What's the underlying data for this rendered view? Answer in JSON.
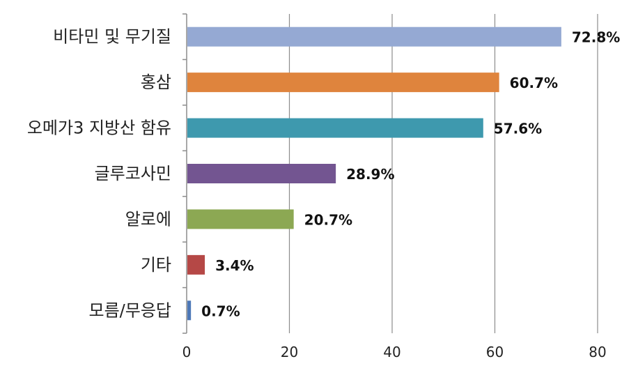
{
  "chart_data": {
    "type": "bar",
    "orientation": "horizontal",
    "categories": [
      "비타민 및 무기질",
      "홍삼",
      "오메가3 지방산 함유",
      "글루코사민",
      "알로에",
      "기타",
      "모름/무응답"
    ],
    "values": [
      72.8,
      60.7,
      57.6,
      28.9,
      20.7,
      3.4,
      0.7
    ],
    "value_labels": [
      "72.8%",
      "60.7%",
      "57.6%",
      "28.9%",
      "20.7%",
      "3.4%",
      "0.7%"
    ],
    "colors": [
      "#95A9D3",
      "#DF843D",
      "#3E99AE",
      "#735591",
      "#8CA853",
      "#B54846",
      "#4D78B7"
    ],
    "xlim": [
      0,
      80
    ],
    "xticks": [
      0,
      20,
      40,
      60,
      80
    ],
    "grid": true,
    "legend": "none"
  }
}
